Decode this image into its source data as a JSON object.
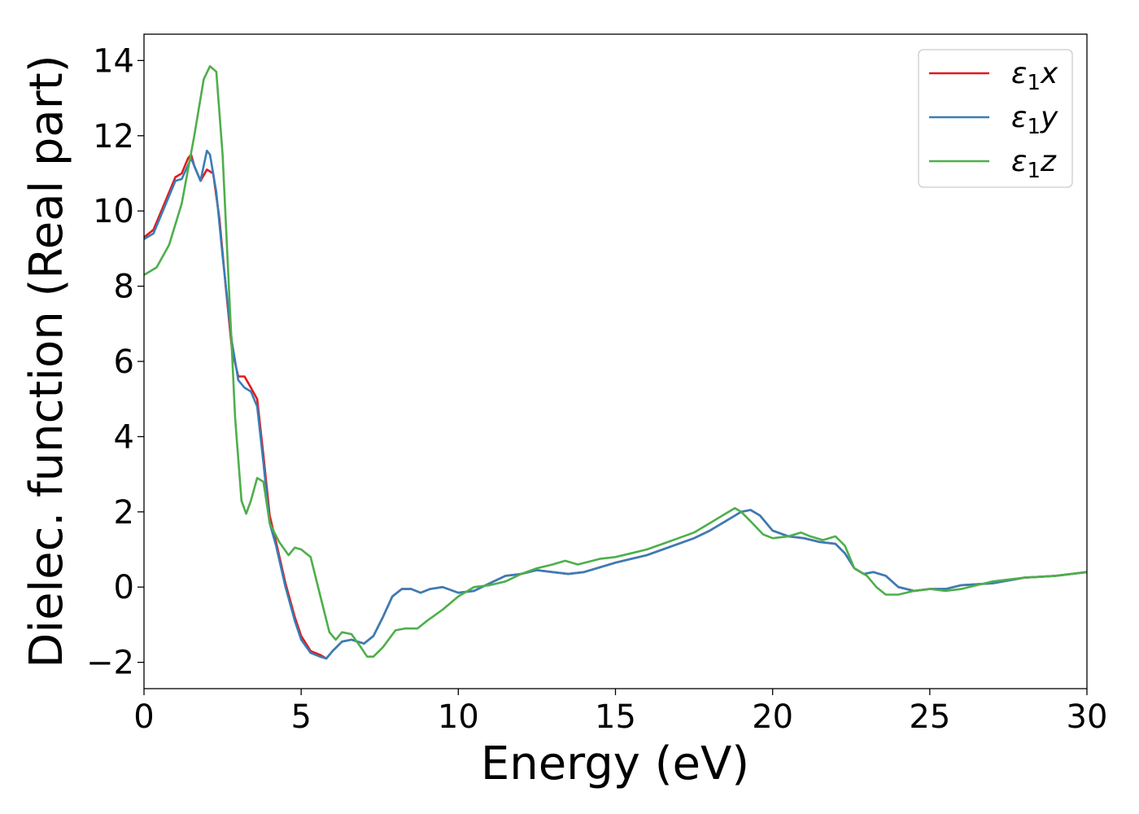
{
  "chart_data": {
    "type": "line",
    "title": "",
    "xlabel": "Energy (eV)",
    "ylabel": "Dielec. function (Real part)",
    "xlim": [
      0,
      30
    ],
    "ylim": [
      -2.7,
      14.7
    ],
    "xticks": [
      0,
      5,
      10,
      15,
      20,
      25,
      30
    ],
    "yticks": [
      -2,
      0,
      2,
      4,
      6,
      8,
      10,
      12,
      14
    ],
    "xtick_labels": [
      "0",
      "5",
      "10",
      "15",
      "20",
      "25",
      "30"
    ],
    "ytick_labels": [
      "−2",
      "0",
      "2",
      "4",
      "6",
      "8",
      "10",
      "12",
      "14"
    ],
    "grid": false,
    "legend": {
      "placement": "top-right",
      "entries": [
        {
          "symbol": "ε",
          "sub": "1",
          "suffix": "x"
        },
        {
          "symbol": "ε",
          "sub": "1",
          "suffix": "y"
        },
        {
          "symbol": "ε",
          "sub": "1",
          "suffix": "z"
        }
      ]
    },
    "series": [
      {
        "color": "#e41a1c",
        "x": [
          0,
          0.3,
          0.6,
          0.8,
          1.0,
          1.2,
          1.4,
          1.5,
          1.6,
          1.8,
          2.0,
          2.2,
          2.4,
          2.6,
          2.8,
          3.0,
          3.2,
          3.4,
          3.6,
          3.8,
          4.0,
          4.2,
          4.5,
          4.8,
          5.0,
          5.3,
          5.6,
          5.8,
          6.0,
          6.3,
          6.6,
          7.0,
          7.3,
          7.6,
          7.9,
          8.2,
          8.5,
          8.8,
          9.1,
          9.5,
          10.0,
          10.5,
          11.0,
          11.5,
          12.0,
          12.5,
          13.0,
          13.5,
          14.0,
          15.0,
          16.0,
          17.0,
          17.5,
          18.0,
          18.5,
          19.0,
          19.3,
          19.6,
          20.0,
          20.5,
          21.0,
          21.5,
          22.0,
          22.3,
          22.6,
          22.9,
          23.2,
          23.6,
          24.0,
          24.5,
          25.0,
          25.5,
          26.0,
          27.0,
          28.0,
          29.0,
          30.0
        ],
        "y": [
          9.3,
          9.5,
          10.1,
          10.5,
          10.9,
          11.0,
          11.4,
          11.5,
          11.2,
          10.8,
          11.1,
          11.0,
          9.8,
          8.0,
          6.3,
          5.6,
          5.6,
          5.3,
          5.0,
          3.5,
          1.9,
          1.2,
          0.1,
          -0.8,
          -1.3,
          -1.7,
          -1.8,
          -1.9,
          -1.7,
          -1.45,
          -1.4,
          -1.5,
          -1.3,
          -0.8,
          -0.25,
          -0.05,
          -0.05,
          -0.15,
          -0.05,
          0.0,
          -0.15,
          -0.1,
          0.1,
          0.3,
          0.35,
          0.45,
          0.4,
          0.35,
          0.4,
          0.65,
          0.85,
          1.15,
          1.3,
          1.5,
          1.75,
          2.0,
          2.05,
          1.9,
          1.5,
          1.35,
          1.3,
          1.2,
          1.15,
          0.9,
          0.5,
          0.35,
          0.4,
          0.3,
          0.0,
          -0.1,
          -0.05,
          -0.05,
          0.05,
          0.1,
          0.25,
          0.3,
          0.4
        ]
      },
      {
        "color": "#377eb8",
        "x": [
          0,
          0.3,
          0.6,
          0.8,
          1.0,
          1.2,
          1.5,
          1.8,
          2.0,
          2.1,
          2.3,
          2.5,
          2.8,
          3.0,
          3.2,
          3.4,
          3.6,
          3.8,
          4.0,
          4.2,
          4.5,
          4.8,
          5.0,
          5.3,
          5.6,
          5.8,
          6.0,
          6.3,
          6.6,
          7.0,
          7.3,
          7.6,
          7.9,
          8.2,
          8.5,
          8.8,
          9.1,
          9.5,
          10.0,
          10.5,
          11.0,
          11.5,
          12.0,
          12.5,
          13.0,
          13.5,
          14.0,
          15.0,
          16.0,
          17.0,
          17.5,
          18.0,
          18.5,
          19.0,
          19.3,
          19.6,
          20.0,
          20.5,
          21.0,
          21.5,
          22.0,
          22.3,
          22.6,
          22.9,
          23.2,
          23.6,
          24.0,
          24.5,
          25.0,
          25.5,
          26.0,
          27.0,
          28.0,
          29.0,
          30.0
        ],
        "y": [
          9.25,
          9.4,
          10.0,
          10.4,
          10.8,
          10.85,
          11.4,
          10.8,
          11.6,
          11.5,
          10.5,
          8.8,
          6.5,
          5.5,
          5.3,
          5.2,
          4.8,
          3.3,
          1.7,
          1.1,
          0.0,
          -0.9,
          -1.4,
          -1.75,
          -1.85,
          -1.9,
          -1.7,
          -1.45,
          -1.4,
          -1.5,
          -1.3,
          -0.8,
          -0.25,
          -0.05,
          -0.05,
          -0.15,
          -0.05,
          0.0,
          -0.15,
          -0.1,
          0.1,
          0.3,
          0.35,
          0.45,
          0.4,
          0.35,
          0.4,
          0.65,
          0.85,
          1.15,
          1.3,
          1.5,
          1.75,
          2.0,
          2.05,
          1.9,
          1.5,
          1.35,
          1.3,
          1.2,
          1.15,
          0.9,
          0.5,
          0.35,
          0.4,
          0.3,
          0.0,
          -0.1,
          -0.05,
          -0.05,
          0.05,
          0.1,
          0.25,
          0.3,
          0.4
        ]
      },
      {
        "color": "#4daf4a",
        "x": [
          0,
          0.4,
          0.8,
          1.2,
          1.6,
          1.9,
          2.1,
          2.3,
          2.5,
          2.7,
          2.9,
          3.1,
          3.25,
          3.4,
          3.6,
          3.8,
          4.0,
          4.3,
          4.6,
          4.8,
          5.0,
          5.3,
          5.6,
          5.9,
          6.1,
          6.3,
          6.6,
          6.9,
          7.1,
          7.3,
          7.6,
          8.0,
          8.3,
          8.7,
          9.0,
          9.5,
          10.0,
          10.5,
          11.0,
          11.5,
          12.0,
          12.5,
          13.0,
          13.4,
          13.8,
          14.5,
          15.0,
          15.5,
          16.0,
          16.5,
          17.0,
          17.5,
          18.0,
          18.5,
          18.8,
          19.0,
          19.3,
          19.7,
          20.0,
          20.5,
          20.9,
          21.2,
          21.6,
          22.0,
          22.3,
          22.6,
          23.0,
          23.3,
          23.6,
          24.0,
          24.5,
          25.0,
          25.5,
          26.0,
          26.5,
          27.0,
          28.0,
          29.0,
          30.0
        ],
        "y": [
          8.3,
          8.5,
          9.1,
          10.2,
          12.0,
          13.5,
          13.85,
          13.7,
          11.5,
          8.0,
          4.5,
          2.3,
          1.95,
          2.3,
          2.9,
          2.8,
          1.7,
          1.2,
          0.85,
          1.05,
          1.0,
          0.8,
          -0.2,
          -1.2,
          -1.4,
          -1.2,
          -1.25,
          -1.6,
          -1.85,
          -1.85,
          -1.6,
          -1.15,
          -1.1,
          -1.1,
          -0.9,
          -0.6,
          -0.25,
          0.0,
          0.05,
          0.15,
          0.35,
          0.5,
          0.6,
          0.7,
          0.6,
          0.75,
          0.8,
          0.9,
          1.0,
          1.15,
          1.3,
          1.45,
          1.7,
          1.95,
          2.1,
          2.0,
          1.75,
          1.4,
          1.3,
          1.35,
          1.45,
          1.35,
          1.25,
          1.35,
          1.1,
          0.5,
          0.3,
          0.0,
          -0.2,
          -0.2,
          -0.1,
          -0.05,
          -0.1,
          -0.05,
          0.05,
          0.15,
          0.25,
          0.3,
          0.4
        ]
      }
    ]
  }
}
